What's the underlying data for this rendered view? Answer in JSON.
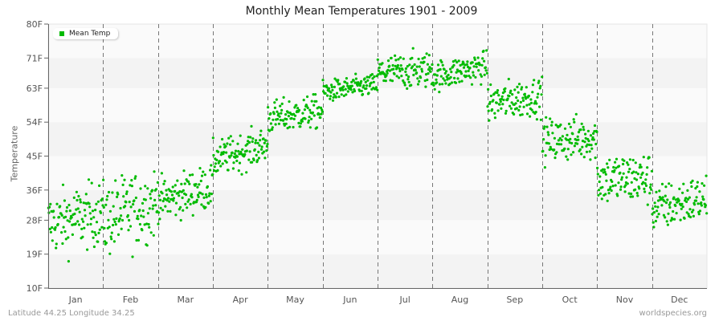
{
  "chart_data": {
    "type": "scatter",
    "title": "Monthly Mean Temperatures 1901 - 2009",
    "xlabel": "",
    "ylabel": "Temperature",
    "ylim": [
      10,
      80
    ],
    "y_ticks": [
      "10F",
      "19F",
      "28F",
      "36F",
      "45F",
      "54F",
      "63F",
      "71F",
      "80F"
    ],
    "y_tick_values": [
      10,
      19,
      28,
      36,
      45,
      54,
      63,
      71,
      80
    ],
    "categories": [
      "Jan",
      "Feb",
      "Mar",
      "Apr",
      "May",
      "Jun",
      "Jul",
      "Aug",
      "Sep",
      "Oct",
      "Nov",
      "Dec"
    ],
    "legend": {
      "position": "top-left",
      "entries": [
        "Mean Temp"
      ]
    },
    "grid": {
      "horizontal_bands": true,
      "vertical_dashed_month_separators": true
    },
    "series": [
      {
        "name": "Mean Temp",
        "color": "#00bb00",
        "points_per_month": 109,
        "monthly_approx_range": {
          "Jan": [
            17,
            40
          ],
          "Feb": [
            14,
            41
          ],
          "Mar": [
            27,
            43
          ],
          "Apr": [
            40,
            53
          ],
          "May": [
            50,
            62
          ],
          "Jun": [
            59,
            67
          ],
          "Jul": [
            62,
            75
          ],
          "Aug": [
            62,
            73
          ],
          "Sep": [
            52,
            66
          ],
          "Oct": [
            42,
            58
          ],
          "Nov": [
            29,
            48
          ],
          "Dec": [
            23,
            40
          ]
        },
        "monthly_mean_approx": [
          29,
          30,
          35,
          46,
          56,
          63,
          67,
          67,
          59,
          49,
          39,
          32
        ],
        "monthly_start_end": [
          [
            27,
            30
          ],
          [
            28,
            33
          ],
          [
            33,
            37
          ],
          [
            44,
            48
          ],
          [
            55,
            57
          ],
          [
            62,
            64
          ],
          [
            67,
            68
          ],
          [
            66,
            69
          ],
          [
            59,
            61
          ],
          [
            49,
            50
          ],
          [
            39,
            39
          ],
          [
            31,
            34
          ]
        ]
      }
    ]
  },
  "footer": {
    "left": "Latitude 44.25 Longitude 34.25",
    "right": "worldspecies.org"
  },
  "colors": {
    "point": "#00bb00",
    "band_light": "#fafafa",
    "band_dark": "#f3f3f3",
    "axis": "#666666",
    "dash": "#777777"
  }
}
